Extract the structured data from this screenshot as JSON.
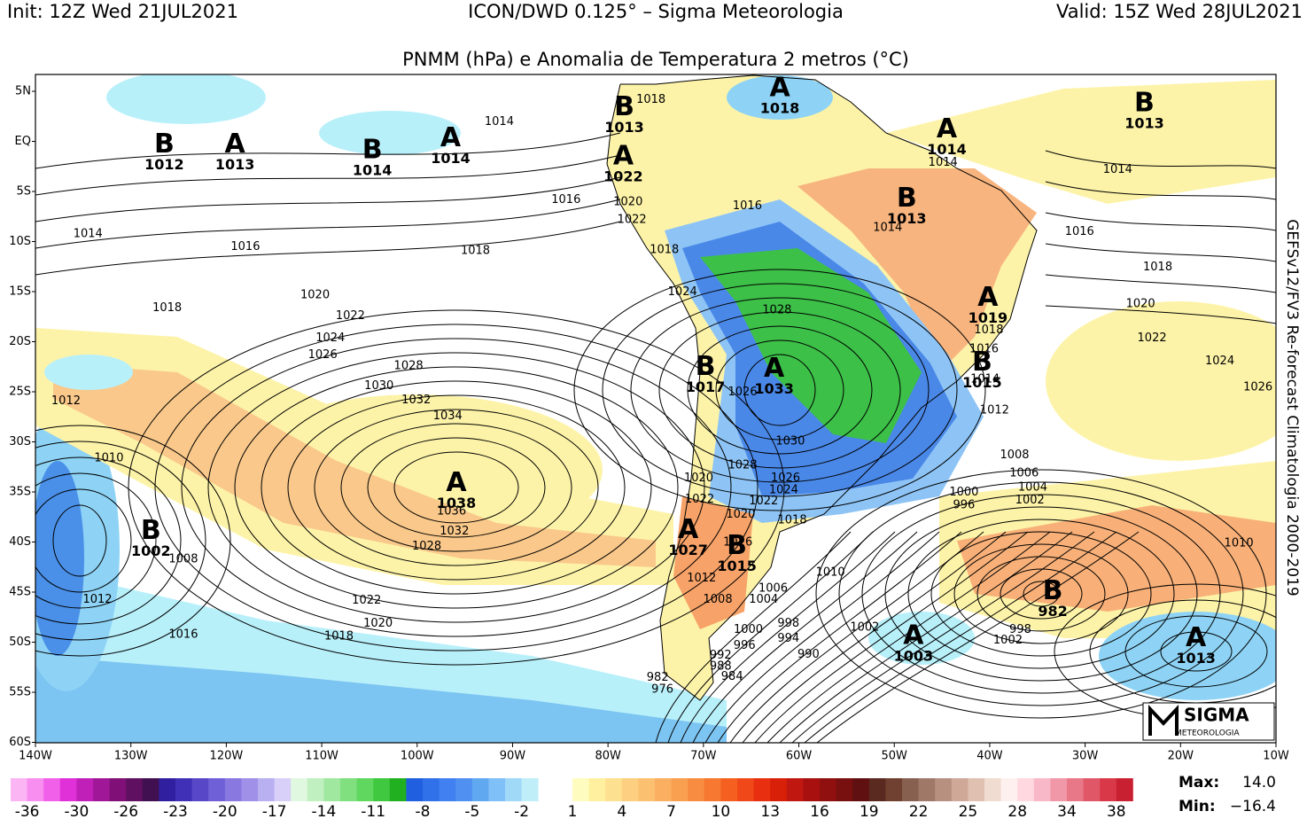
{
  "header": {
    "init": "Init: 12Z Wed 21JUL2021",
    "model": "ICON/DWD 0.125° – Sigma Meteorologia",
    "valid": "Valid: 15Z Wed 28JUL2021",
    "title": "PNMM (hPa) e Anomalia de Temperatura 2 metros (°C)"
  },
  "side_note": "GEFSv12/FV3 Re-forecast Climatologia 2000-2019",
  "map": {
    "lat_labels": [
      "5N",
      "EQ",
      "5S",
      "10S",
      "15S",
      "20S",
      "25S",
      "30S",
      "35S",
      "40S",
      "45S",
      "50S",
      "55S",
      "60S"
    ],
    "lon_labels": [
      "140W",
      "130W",
      "120W",
      "110W",
      "100W",
      "90W",
      "80W",
      "70W",
      "60W",
      "50W",
      "40W",
      "30W",
      "20W",
      "10W"
    ],
    "centers": [
      {
        "letter": "B",
        "value": 1012,
        "lon": -126.5,
        "lat": -0.3
      },
      {
        "letter": "A",
        "value": 1013,
        "lon": -119.1,
        "lat": -0.3
      },
      {
        "letter": "B",
        "value": 1014,
        "lon": -104.7,
        "lat": -0.9
      },
      {
        "letter": "A",
        "value": 1014,
        "lon": -96.5,
        "lat": 0.3
      },
      {
        "letter": "B",
        "value": 1013,
        "lon": -78.3,
        "lat": 3.4
      },
      {
        "letter": "A",
        "value": 1022,
        "lon": -78.4,
        "lat": -1.5
      },
      {
        "letter": "A",
        "value": 1018,
        "lon": -62.0,
        "lat": 5.3
      },
      {
        "letter": "A",
        "value": 1014,
        "lon": -44.5,
        "lat": 1.2
      },
      {
        "letter": "B",
        "value": 1013,
        "lon": -48.7,
        "lat": -5.7
      },
      {
        "letter": "B",
        "value": 1013,
        "lon": -23.8,
        "lat": 3.8
      },
      {
        "letter": "A",
        "value": 1019,
        "lon": -40.2,
        "lat": -15.6
      },
      {
        "letter": "B",
        "value": 1015,
        "lon": -40.8,
        "lat": -22.1
      },
      {
        "letter": "B",
        "value": 1017,
        "lon": -69.8,
        "lat": -22.5
      },
      {
        "letter": "A",
        "value": 1033,
        "lon": -62.6,
        "lat": -22.7
      },
      {
        "letter": "A",
        "value": 1038,
        "lon": -95.9,
        "lat": -34.1
      },
      {
        "letter": "B",
        "value": 1002,
        "lon": -127.9,
        "lat": -38.9
      },
      {
        "letter": "A",
        "value": 1027,
        "lon": -71.6,
        "lat": -38.8
      },
      {
        "letter": "B",
        "value": 1015,
        "lon": -66.5,
        "lat": -40.4
      },
      {
        "letter": "B",
        "value": 982,
        "lon": -33.4,
        "lat": -44.9
      },
      {
        "letter": "A",
        "value": 1003,
        "lon": -48.0,
        "lat": -49.4
      },
      {
        "letter": "A",
        "value": 1013,
        "lon": -18.4,
        "lat": -49.6
      }
    ],
    "isobar_labels": [
      {
        "value": 1014,
        "lon": -91.4,
        "lat": 2.0
      },
      {
        "value": 1016,
        "lon": -84.4,
        "lat": -5.8
      },
      {
        "value": 1014,
        "lon": -134.5,
        "lat": -9.2
      },
      {
        "value": 1016,
        "lon": -118.0,
        "lat": -10.5
      },
      {
        "value": 1018,
        "lon": -93.9,
        "lat": -10.9
      },
      {
        "value": 1020,
        "lon": -77.9,
        "lat": -6.0
      },
      {
        "value": 1022,
        "lon": -77.5,
        "lat": -7.8
      },
      {
        "value": 1024,
        "lon": -72.2,
        "lat": -15.0
      },
      {
        "value": 1016,
        "lon": -65.4,
        "lat": -6.4
      },
      {
        "value": 1014,
        "lon": -50.7,
        "lat": -8.6
      },
      {
        "value": 1014,
        "lon": -26.6,
        "lat": -2.8
      },
      {
        "value": 1016,
        "lon": -30.6,
        "lat": -9.0
      },
      {
        "value": 1018,
        "lon": -22.4,
        "lat": -12.5
      },
      {
        "value": 1020,
        "lon": -24.2,
        "lat": -16.2
      },
      {
        "value": 1022,
        "lon": -23.0,
        "lat": -19.6
      },
      {
        "value": 1024,
        "lon": -15.9,
        "lat": -21.9
      },
      {
        "value": 1026,
        "lon": -11.9,
        "lat": -24.5
      },
      {
        "value": 1012,
        "lon": -39.5,
        "lat": -26.8
      },
      {
        "value": 1008,
        "lon": -37.4,
        "lat": -31.3
      },
      {
        "value": 1006,
        "lon": -36.4,
        "lat": -33.1
      },
      {
        "value": 1004,
        "lon": -35.5,
        "lat": -34.5
      },
      {
        "value": 1002,
        "lon": -35.8,
        "lat": -35.8
      },
      {
        "value": 1000,
        "lon": -42.7,
        "lat": -35.0
      },
      {
        "value": 996,
        "lon": -42.7,
        "lat": -36.3
      },
      {
        "value": 1010,
        "lon": -13.9,
        "lat": -40.1
      },
      {
        "value": 998,
        "lon": -36.8,
        "lat": -48.7
      },
      {
        "value": 1002,
        "lon": -38.1,
        "lat": -49.8
      },
      {
        "value": 1002,
        "lon": -53.1,
        "lat": -48.5
      },
      {
        "value": 1010,
        "lon": -56.7,
        "lat": -43.0
      },
      {
        "value": 1006,
        "lon": -62.7,
        "lat": -44.6
      },
      {
        "value": 1004,
        "lon": -63.7,
        "lat": -45.7
      },
      {
        "value": 1000,
        "lon": -65.3,
        "lat": -48.7
      },
      {
        "value": 996,
        "lon": -65.7,
        "lat": -50.3
      },
      {
        "value": 998,
        "lon": -61.1,
        "lat": -48.1
      },
      {
        "value": 994,
        "lon": -61.1,
        "lat": -49.6
      },
      {
        "value": 990,
        "lon": -59.0,
        "lat": -51.2
      },
      {
        "value": 992,
        "lon": -68.2,
        "lat": -51.3
      },
      {
        "value": 988,
        "lon": -68.2,
        "lat": -52.4
      },
      {
        "value": 984,
        "lon": -67.0,
        "lat": -53.4
      },
      {
        "value": 982,
        "lon": -74.8,
        "lat": -53.5
      },
      {
        "value": 976,
        "lon": -74.3,
        "lat": -54.7
      },
      {
        "value": 1008,
        "lon": -68.5,
        "lat": -45.7
      },
      {
        "value": 1012,
        "lon": -70.2,
        "lat": -43.6
      },
      {
        "value": 1016,
        "lon": -66.4,
        "lat": -40.0
      },
      {
        "value": 1018,
        "lon": -60.7,
        "lat": -37.8
      },
      {
        "value": 1020,
        "lon": -66.1,
        "lat": -37.2
      },
      {
        "value": 1022,
        "lon": -63.7,
        "lat": -35.9
      },
      {
        "value": 1024,
        "lon": -61.6,
        "lat": -34.8
      },
      {
        "value": 1026,
        "lon": -61.4,
        "lat": -33.6
      },
      {
        "value": 1028,
        "lon": -65.9,
        "lat": -32.3
      },
      {
        "value": 1030,
        "lon": -60.9,
        "lat": -29.9
      },
      {
        "value": 1028,
        "lon": -62.3,
        "lat": -16.8
      },
      {
        "value": 1026,
        "lon": -65.9,
        "lat": -25.0
      },
      {
        "value": 1020,
        "lon": -70.5,
        "lat": -33.6
      },
      {
        "value": 1022,
        "lon": -70.4,
        "lat": -35.7
      },
      {
        "value": 1032,
        "lon": -96.1,
        "lat": -38.9
      },
      {
        "value": 1036,
        "lon": -96.4,
        "lat": -36.9
      },
      {
        "value": 1028,
        "lon": -99.0,
        "lat": -40.4
      },
      {
        "value": 1034,
        "lon": -96.8,
        "lat": -27.4
      },
      {
        "value": 1032,
        "lon": -100.1,
        "lat": -25.8
      },
      {
        "value": 1030,
        "lon": -104.0,
        "lat": -24.4
      },
      {
        "value": 1028,
        "lon": -100.9,
        "lat": -22.4
      },
      {
        "value": 1026,
        "lon": -109.9,
        "lat": -21.3
      },
      {
        "value": 1024,
        "lon": -109.1,
        "lat": -19.6
      },
      {
        "value": 1022,
        "lon": -107.0,
        "lat": -17.4
      },
      {
        "value": 1020,
        "lon": -110.7,
        "lat": -15.3
      },
      {
        "value": 1018,
        "lon": -126.2,
        "lat": -16.6
      },
      {
        "value": 1012,
        "lon": -136.8,
        "lat": -25.9
      },
      {
        "value": 1010,
        "lon": -132.3,
        "lat": -31.6
      },
      {
        "value": 1008,
        "lon": -124.5,
        "lat": -41.7
      },
      {
        "value": 1012,
        "lon": -133.5,
        "lat": -45.7
      },
      {
        "value": 1016,
        "lon": -124.5,
        "lat": -49.2
      },
      {
        "value": 1018,
        "lon": -108.2,
        "lat": -49.4
      },
      {
        "value": 1020,
        "lon": -104.1,
        "lat": -48.1
      },
      {
        "value": 1022,
        "lon": -105.3,
        "lat": -45.8
      },
      {
        "value": 1018,
        "lon": -75.5,
        "lat": 4.2
      },
      {
        "value": 1018,
        "lon": -74.1,
        "lat": -10.8
      },
      {
        "value": 1014,
        "lon": -44.9,
        "lat": -2.1
      },
      {
        "value": 1018,
        "lon": -40.1,
        "lat": -18.8
      },
      {
        "value": 1016,
        "lon": -40.6,
        "lat": -20.7
      },
      {
        "value": 1014,
        "lon": -40.5,
        "lat": -23.7
      }
    ]
  },
  "colorbar": {
    "negative": {
      "labels": [
        -36,
        -30,
        -26,
        -23,
        -20,
        -17,
        -14,
        -11,
        -8,
        -5,
        -2
      ],
      "colors": [
        "#fbb4f4",
        "#f78ef0",
        "#f060e8",
        "#e030d8",
        "#c020b8",
        "#a01898",
        "#801078",
        "#601060",
        "#401050",
        "#3020a0",
        "#4030b8",
        "#5848c8",
        "#7060d8",
        "#8878e0",
        "#a090e8",
        "#b8b0f0",
        "#d8d0f8",
        "#e0f8e0",
        "#c0f0c0",
        "#a0e8a0",
        "#80e080",
        "#60d860",
        "#40c840",
        "#20b020",
        "#2060e0",
        "#3070e8",
        "#4080f0",
        "#5090f0",
        "#60a8f0",
        "#80c0f8",
        "#a0d8f8",
        "#c0eef8"
      ]
    },
    "positive": {
      "labels": [
        1,
        4,
        7,
        10,
        13,
        16,
        19,
        22,
        25,
        28,
        34,
        38
      ],
      "colors": [
        "#fffcc0",
        "#fff0a0",
        "#fde090",
        "#fcd080",
        "#fbc070",
        "#fab060",
        "#f9a050",
        "#f88c40",
        "#f77830",
        "#f56020",
        "#f04818",
        "#e83010",
        "#d82008",
        "#c01810",
        "#a81010",
        "#901010",
        "#781010",
        "#601010",
        "#5a2a20",
        "#704030",
        "#886050",
        "#a07868",
        "#b89080",
        "#d0a898",
        "#e0c0b0",
        "#f0dcd0",
        "#fff0f0",
        "#ffd8e0",
        "#f8b8c8",
        "#f098a8",
        "#e87888",
        "#e05868",
        "#d83848",
        "#c82030"
      ]
    }
  },
  "stats": {
    "max_label": "Max:",
    "max": "14.0",
    "min_label": "Min:",
    "min": "−16.4"
  },
  "logo": {
    "name": "SIGMA",
    "sub": "METEOROLOGIA"
  }
}
